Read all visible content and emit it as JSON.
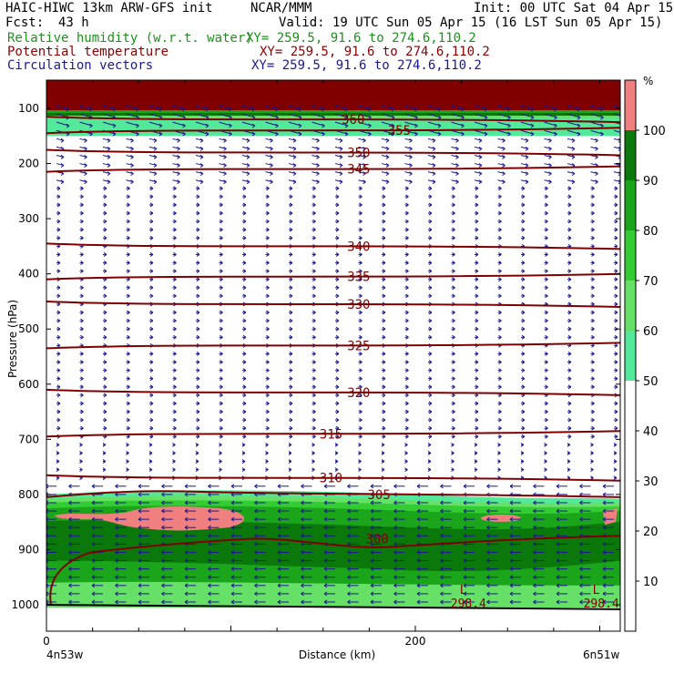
{
  "header": {
    "model": "HAIC-HIWC 13km ARW-GFS init",
    "org": "NCAR/MMM",
    "init": "Init: 00 UTC Sat 04 Apr 15",
    "fcst_label": "Fcst:",
    "fcst_value": "43 h",
    "valid": "Valid: 19 UTC Sun 05 Apr 15 (16 LST Sun 05 Apr 15)",
    "fields": [
      {
        "name": "Relative humidity (w.r.t. water)",
        "xy": "XY= 259.5, 91.6 to 274.6,110.2",
        "color": "#1f8f1f"
      },
      {
        "name": "Potential temperature",
        "xy": "XY= 259.5, 91.6 to 274.6,110.2",
        "color": "#8b0000"
      },
      {
        "name": "Circulation vectors",
        "xy": "XY= 259.5, 91.6 to 274.6,110.2",
        "color": "#1a1a8c"
      }
    ]
  },
  "chart_data": {
    "type": "heatmap",
    "ylabel": "Pressure (hPa)",
    "xlabel": "Distance (km)",
    "yticks": [
      100,
      200,
      300,
      400,
      500,
      600,
      700,
      800,
      900,
      1000
    ],
    "xticks": [
      0,
      200
    ],
    "xlim": [
      0,
      300
    ],
    "ylim": [
      1050,
      55
    ],
    "x_left_label": "4n53w",
    "x_right_label": "6n51w",
    "colorbar": {
      "unit": "%",
      "ticks": [
        10,
        20,
        30,
        40,
        50,
        60,
        70,
        80,
        90,
        100
      ],
      "bands": [
        {
          "from": 50,
          "to": 60,
          "color": "#54e89a"
        },
        {
          "from": 60,
          "to": 70,
          "color": "#66e066"
        },
        {
          "from": 70,
          "to": 80,
          "color": "#33cc33"
        },
        {
          "from": 80,
          "to": 90,
          "color": "#1aa51a"
        },
        {
          "from": 90,
          "to": 100,
          "color": "#0b780b"
        },
        {
          "from": 100,
          "to": 110,
          "color": "#f08080"
        }
      ]
    },
    "theta_contours": [
      {
        "value": 360,
        "p": 120,
        "label": "360",
        "lx": 160
      },
      {
        "value": 355,
        "p": 140,
        "label": "355",
        "lx": 185
      },
      {
        "value": 350,
        "p": 180,
        "label": "350",
        "lx": 163
      },
      {
        "value": 345,
        "p": 210,
        "label": "345",
        "lx": 163
      },
      {
        "value": 340,
        "p": 350,
        "label": "340",
        "lx": 163
      },
      {
        "value": 335,
        "p": 405,
        "label": "335",
        "lx": 163
      },
      {
        "value": 330,
        "p": 455,
        "label": "330",
        "lx": 163
      },
      {
        "value": 325,
        "p": 530,
        "label": "325",
        "lx": 163
      },
      {
        "value": 320,
        "p": 615,
        "label": "320",
        "lx": 163
      },
      {
        "value": 315,
        "p": 690,
        "label": "315",
        "lx": 148
      },
      {
        "value": 310,
        "p": 770,
        "label": "310",
        "lx": 148
      },
      {
        "value": 305,
        "p": 800,
        "label": "305",
        "lx": 174
      },
      {
        "value": 300,
        "p": 880,
        "label": "300",
        "lx": 173
      }
    ],
    "lows": [
      {
        "x": 224,
        "p": 985,
        "label": "L",
        "value": "298.4"
      },
      {
        "x": 296,
        "p": 985,
        "label": "L",
        "value": "298.4"
      }
    ]
  }
}
